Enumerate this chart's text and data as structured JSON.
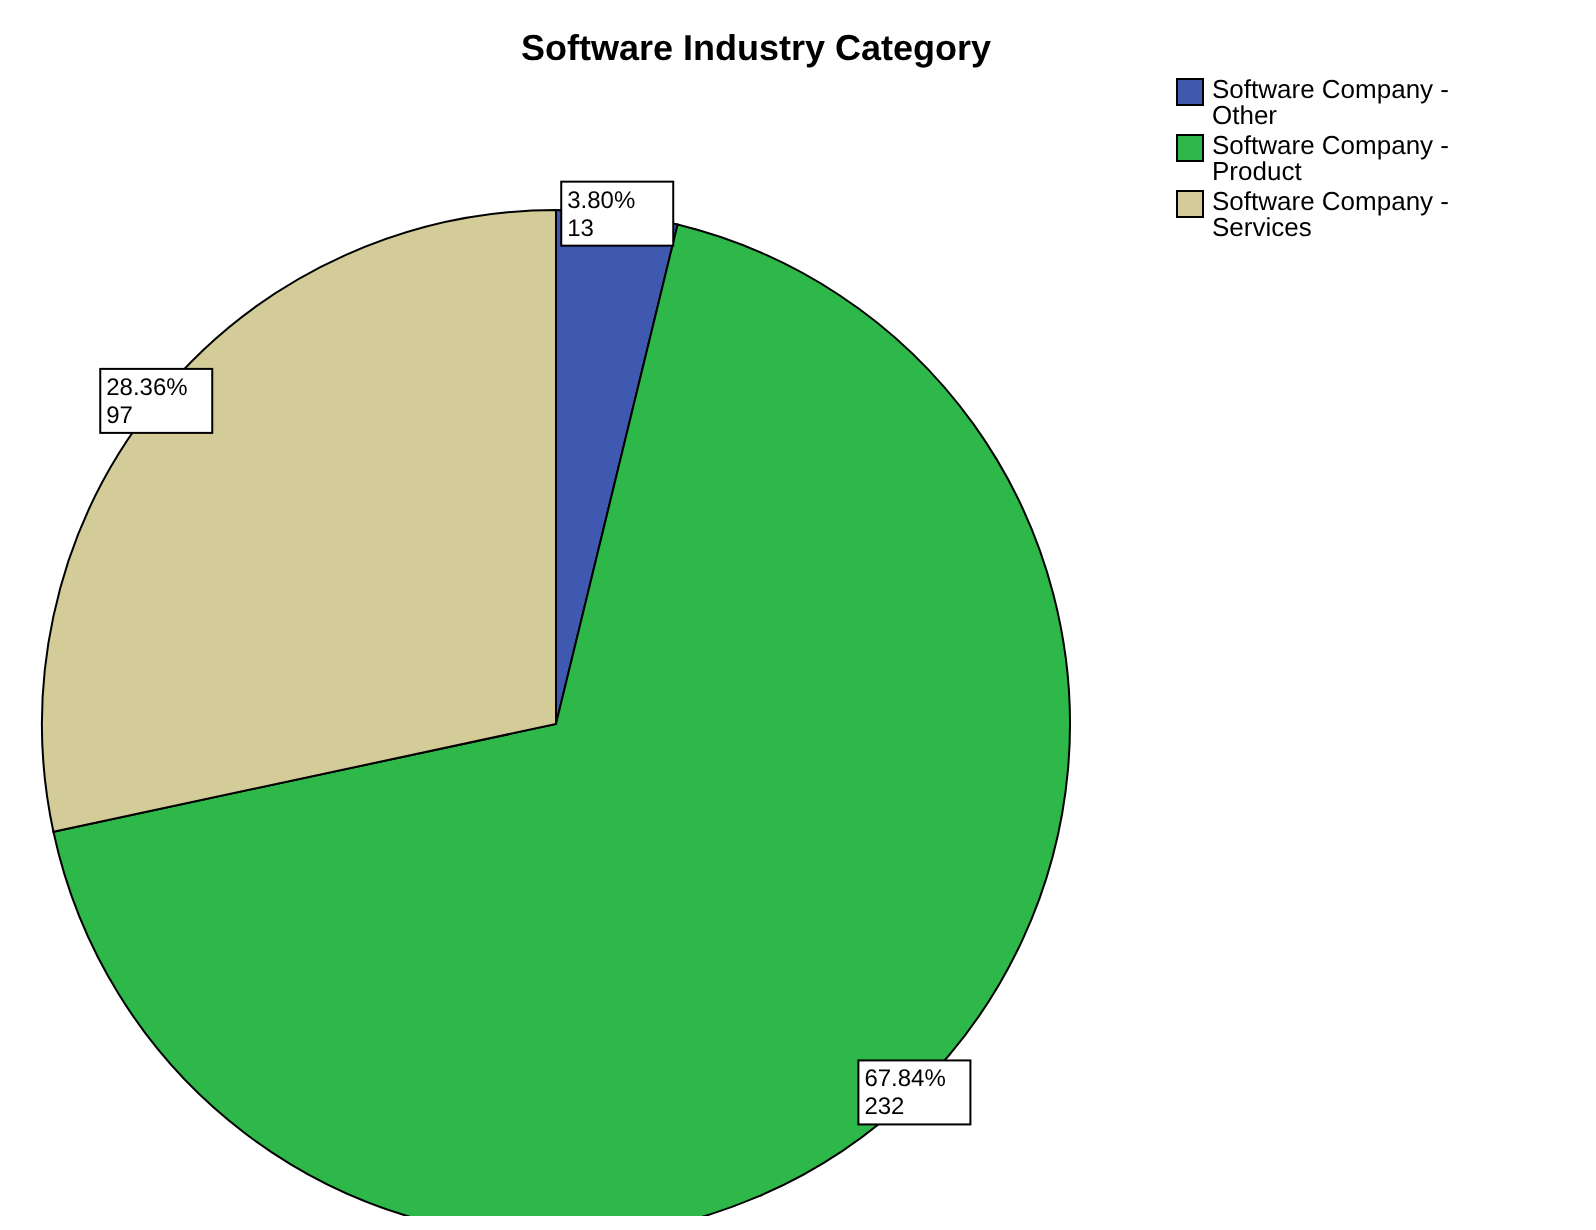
{
  "chart_data": {
    "type": "pie",
    "title": "Software Industry Category",
    "categories": [
      "Software Company - Other",
      "Software Company - Product",
      "Software Company - Services"
    ],
    "values": [
      13,
      232,
      97
    ],
    "colors": [
      "#3f58b0",
      "#2eb84a",
      "#d4cc98"
    ],
    "value_labels": [
      "3.80%\n13",
      "67.84%\n232",
      "28.36%\n97"
    ],
    "legend": "top right"
  }
}
